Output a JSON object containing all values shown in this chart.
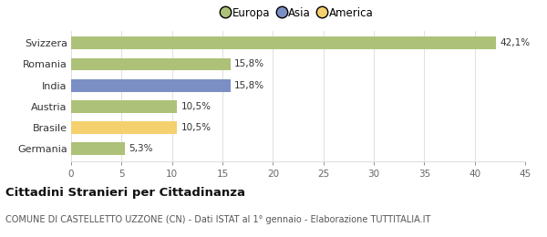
{
  "categories": [
    "Germania",
    "Brasile",
    "Austria",
    "India",
    "Romania",
    "Svizzera"
  ],
  "values": [
    5.3,
    10.5,
    10.5,
    15.8,
    15.8,
    42.1
  ],
  "labels": [
    "5,3%",
    "10,5%",
    "10,5%",
    "15,8%",
    "15,8%",
    "42,1%"
  ],
  "colors": [
    "#adc178",
    "#f5d06e",
    "#adc178",
    "#7b8fc4",
    "#adc178",
    "#adc178"
  ],
  "legend": [
    {
      "label": "Europa",
      "color": "#adc178"
    },
    {
      "label": "Asia",
      "color": "#7b8fc4"
    },
    {
      "label": "America",
      "color": "#f5d06e"
    }
  ],
  "xlim": [
    0,
    45
  ],
  "xticks": [
    0,
    5,
    10,
    15,
    20,
    25,
    30,
    35,
    40,
    45
  ],
  "title_main": "Cittadini Stranieri per Cittadinanza",
  "title_sub": "COMUNE DI CASTELLETTO UZZONE (CN) - Dati ISTAT al 1° gennaio - Elaborazione TUTTITALIA.IT",
  "background_color": "#ffffff",
  "grid_color": "#e0e0e0"
}
